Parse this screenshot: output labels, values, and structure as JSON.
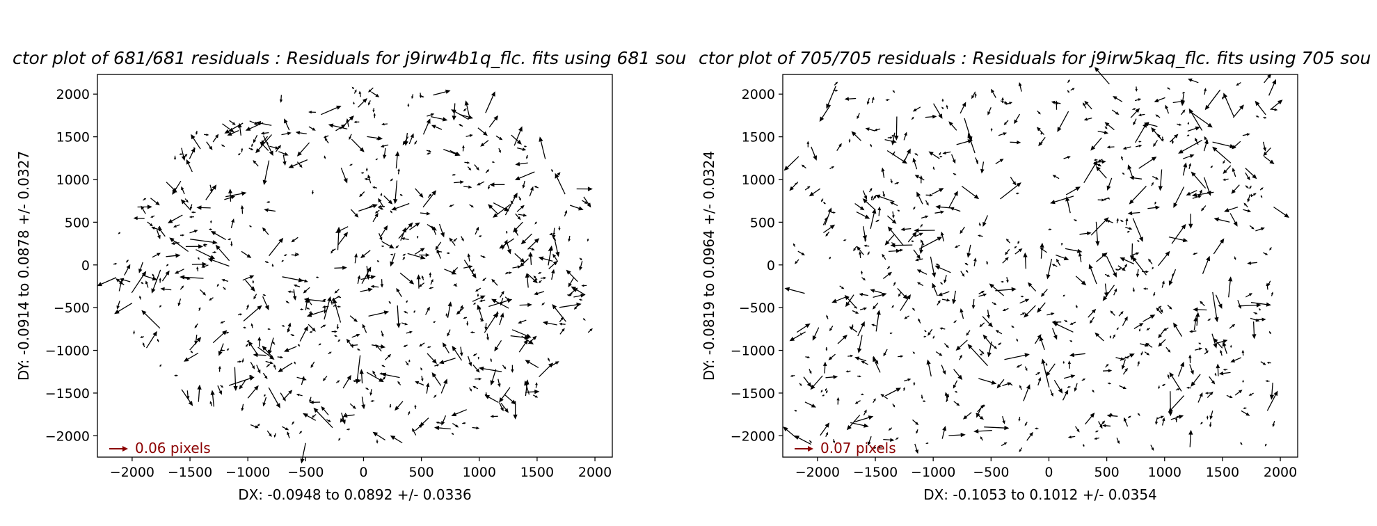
{
  "chart_data": [
    {
      "type": "quiver",
      "title": "ctor plot of 681/681 residuals :  Residuals for j9irw4b1q_flc. fits using 681 sou",
      "xlabel": "DX: -0.0948 to 0.0892 +/- 0.0336",
      "ylabel": "DY: -0.0914 to 0.0878 +/- 0.0327",
      "xlim": [
        -2300,
        2150
      ],
      "ylim": [
        -2250,
        2230
      ],
      "xticks": [
        -2000,
        -1500,
        -1000,
        -500,
        0,
        500,
        1000,
        1500,
        2000
      ],
      "yticks": [
        -2000,
        -1500,
        -1000,
        -500,
        0,
        500,
        1000,
        1500,
        2000
      ],
      "xtick_labels": [
        "−2000",
        "−1500",
        "−1000",
        "−500",
        "0",
        "500",
        "1000",
        "1500",
        "2000"
      ],
      "ytick_labels": [
        "−2000",
        "−1500",
        "−1000",
        "−500",
        "0",
        "500",
        "1000",
        "1500",
        "2000"
      ],
      "n_vectors": 681,
      "footprint": "circular",
      "quiver_key": {
        "label": "0.06 pixels",
        "value": 0.06,
        "color": "#8b0000"
      }
    },
    {
      "type": "quiver",
      "title": "ctor plot of 705/705 residuals :  Residuals for j9irw5kaq_flc. fits using 705 sou",
      "xlabel": "DX: -0.1053 to 0.1012 +/- 0.0354",
      "ylabel": "DY: -0.0819 to 0.0964 +/- 0.0324",
      "xlim": [
        -2300,
        2150
      ],
      "ylim": [
        -2250,
        2230
      ],
      "xticks": [
        -2000,
        -1500,
        -1000,
        -500,
        0,
        500,
        1000,
        1500,
        2000
      ],
      "yticks": [
        -2000,
        -1500,
        -1000,
        -500,
        0,
        500,
        1000,
        1500,
        2000
      ],
      "xtick_labels": [
        "−2000",
        "−1500",
        "−1000",
        "−500",
        "0",
        "500",
        "1000",
        "1500",
        "2000"
      ],
      "ytick_labels": [
        "−2000",
        "−1500",
        "−1000",
        "−500",
        "0",
        "500",
        "1000",
        "1500",
        "2000"
      ],
      "n_vectors": 705,
      "footprint": "rectangular",
      "quiver_key": {
        "label": "0.07 pixels",
        "value": 0.07,
        "color": "#8b0000"
      }
    }
  ]
}
